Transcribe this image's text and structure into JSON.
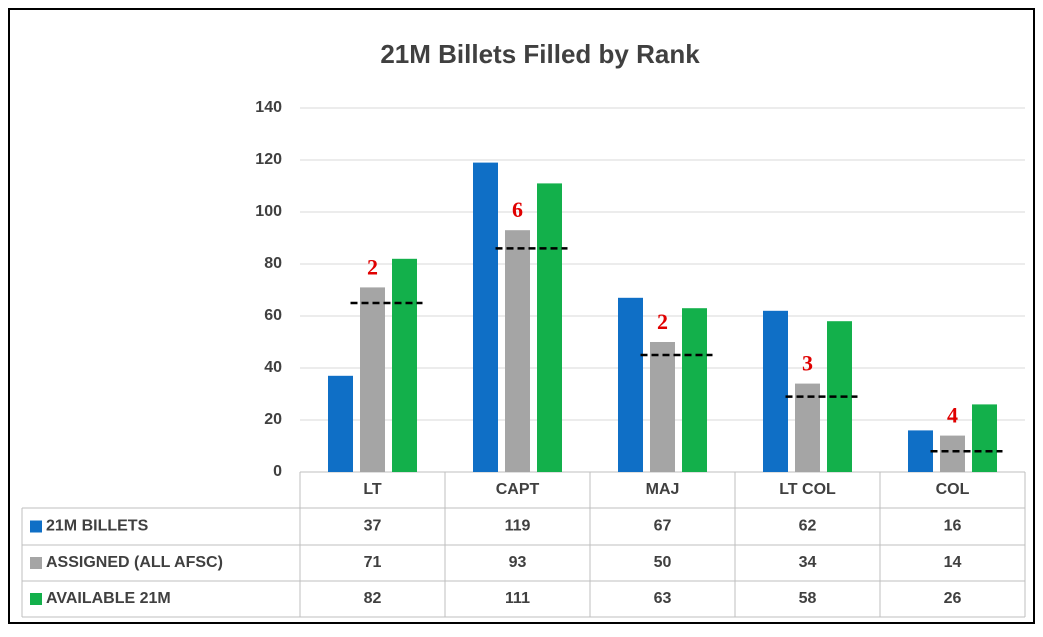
{
  "chart_data": {
    "type": "bar",
    "title": "21M Billets Filled by Rank",
    "categories": [
      "LT",
      "CAPT",
      "MAJ",
      "LT COL",
      "COL"
    ],
    "series": [
      {
        "name": "21M BILLETS",
        "color": "#0f6fc6",
        "values": [
          37,
          119,
          67,
          62,
          16
        ]
      },
      {
        "name": "ASSIGNED (ALL AFSC)",
        "color": "#a5a5a5",
        "values": [
          71,
          93,
          50,
          34,
          14
        ]
      },
      {
        "name": "AVAILABLE 21M",
        "color": "#13b04b",
        "values": [
          82,
          111,
          63,
          58,
          26
        ]
      }
    ],
    "annotations": [
      "2",
      "6",
      "2",
      "3",
      "4"
    ],
    "threshold_values": [
      65,
      86,
      45,
      29,
      8
    ],
    "ylim": [
      0,
      140
    ],
    "yticks": [
      0,
      20,
      40,
      60,
      80,
      100,
      120,
      140
    ],
    "grid": true
  }
}
